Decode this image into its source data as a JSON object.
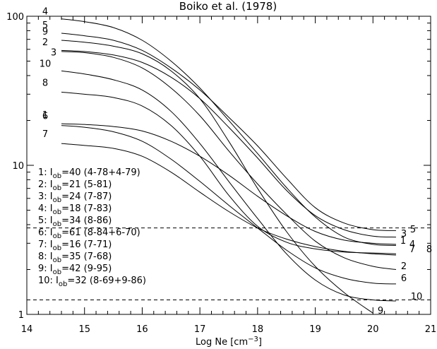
{
  "chart_data": {
    "type": "line",
    "title": "Boiko et al. (1978)",
    "xlabel": "Log Ne [cm⁻³]",
    "ylabel": "",
    "xlim": [
      14,
      21
    ],
    "ylim": [
      1,
      100
    ],
    "y_scale": "log",
    "grid": false,
    "x_ticks": [
      "14",
      "15",
      "16",
      "17",
      "18",
      "19",
      "20",
      "21"
    ],
    "y_ticks": [
      "1",
      "10",
      "100"
    ],
    "reference_lines": [
      3.8,
      1.25
    ],
    "legend_location": "lower-left",
    "legend": [
      "1: I_ob=40 (4-78+4-79)",
      "2: I_ob=21 (5-81)",
      "3: I_ob=24 (7-87)",
      "4: I_ob=18 (7-83)",
      "5: I_ob=34 (8-86)",
      "6: I_ob=61 (8-84+6-70)",
      "7: I_ob=16 (7-71)",
      "8: I_ob=35 (7-68)",
      "9: I_ob=42 (9-95)",
      "10: I_ob=32 (8-69+9-86)"
    ],
    "series": [
      {
        "name": "1",
        "x": [
          14.6,
          15.0,
          15.5,
          16.0,
          16.5,
          17.0,
          17.5,
          18.0,
          18.5,
          19.0,
          19.5,
          20.0,
          20.4
        ],
        "y": [
          19,
          18.8,
          18.2,
          17,
          14.5,
          11.5,
          8.6,
          6.2,
          4.6,
          3.6,
          3.15,
          3.0,
          2.95
        ]
      },
      {
        "name": "2",
        "x": [
          14.6,
          15.0,
          15.5,
          16.0,
          16.5,
          17.0,
          17.5,
          18.0,
          18.5,
          19.0,
          19.5,
          20.0,
          20.4
        ],
        "y": [
          58,
          57,
          53,
          45,
          33,
          21.5,
          12.5,
          7.5,
          4.7,
          3.1,
          2.4,
          2.1,
          2.0
        ]
      },
      {
        "name": "3",
        "x": [
          14.6,
          15.0,
          15.5,
          16.0,
          16.5,
          17.0,
          17.5,
          18.0,
          18.5,
          19.0,
          19.5,
          20.0,
          20.4
        ],
        "y": [
          59,
          58,
          55,
          49,
          39,
          28,
          18,
          11.2,
          6.8,
          4.6,
          3.7,
          3.35,
          3.3
        ]
      },
      {
        "name": "4",
        "x": [
          14.6,
          15.0,
          15.5,
          16.0,
          16.5,
          17.0,
          17.5,
          18.0,
          18.5,
          19.0,
          19.5,
          20.0,
          20.4
        ],
        "y": [
          96,
          92,
          84,
          69,
          50,
          33,
          20,
          12,
          7.1,
          4.5,
          3.3,
          2.95,
          2.9
        ]
      },
      {
        "name": "5",
        "x": [
          14.6,
          15.0,
          15.5,
          16.0,
          16.5,
          17.0,
          17.5,
          18.0,
          18.5,
          19.0,
          19.5,
          20.0,
          20.4
        ],
        "y": [
          77,
          74,
          69,
          59,
          45,
          32,
          21,
          13.5,
          8.2,
          5.2,
          4.1,
          3.7,
          3.65
        ]
      },
      {
        "name": "6",
        "x": [
          14.6,
          15.0,
          15.5,
          16.0,
          16.5,
          17.0,
          17.5,
          18.0,
          18.5,
          19.0,
          19.5,
          20.0,
          20.4
        ],
        "y": [
          18.5,
          18,
          16.8,
          14.5,
          11,
          7.8,
          5.4,
          3.8,
          2.7,
          2.05,
          1.75,
          1.62,
          1.6
        ]
      },
      {
        "name": "7",
        "x": [
          14.6,
          15.0,
          15.5,
          16.0,
          16.5,
          17.0,
          17.5,
          18.0,
          18.5,
          19.0,
          19.5,
          20.0,
          20.4
        ],
        "y": [
          14,
          13.6,
          13,
          11.5,
          9,
          6.6,
          4.9,
          3.8,
          3.2,
          2.85,
          2.65,
          2.55,
          2.5
        ]
      },
      {
        "name": "8",
        "x": [
          14.6,
          15.0,
          15.5,
          16.0,
          16.5,
          17.0,
          17.5,
          18.0,
          18.5,
          19.0,
          19.5,
          20.0,
          20.4
        ],
        "y": [
          31,
          30,
          28.5,
          25,
          18.5,
          11.5,
          6.3,
          3.9,
          3.05,
          2.75,
          2.62,
          2.58,
          2.55
        ]
      },
      {
        "name": "9",
        "x": [
          14.6,
          15.0,
          15.5,
          16.0,
          16.5,
          17.0,
          17.5,
          18.0,
          18.5,
          19.0,
          19.5,
          20.0
        ],
        "y": [
          69,
          67,
          63,
          56,
          43,
          28,
          14.5,
          7,
          3.6,
          2.1,
          1.4,
          1.02
        ]
      },
      {
        "name": "10",
        "x": [
          14.6,
          15.0,
          15.5,
          16.0,
          16.5,
          17.0,
          17.5,
          18.0,
          18.5,
          19.0,
          19.5,
          20.0,
          20.4
        ],
        "y": [
          43,
          41,
          37.5,
          32,
          23,
          14,
          7.8,
          4.4,
          2.55,
          1.7,
          1.35,
          1.25,
          1.23
        ]
      }
    ]
  }
}
